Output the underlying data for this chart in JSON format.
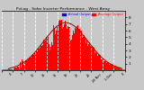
{
  "title": "PvLog - Solar Inverter Performance - West Array",
  "legend_actual": "Actual Output",
  "legend_average": "Average Output",
  "background_color": "#c8c8c8",
  "plot_bg_color": "#c8c8c8",
  "bar_color": "#ff0000",
  "grid_color": "#ffffff",
  "title_color": "#000000",
  "ylim": [
    0,
    9
  ],
  "yticks": [
    1,
    2,
    3,
    4,
    5,
    6,
    7,
    8
  ],
  "num_bars": 144,
  "seed": 7
}
